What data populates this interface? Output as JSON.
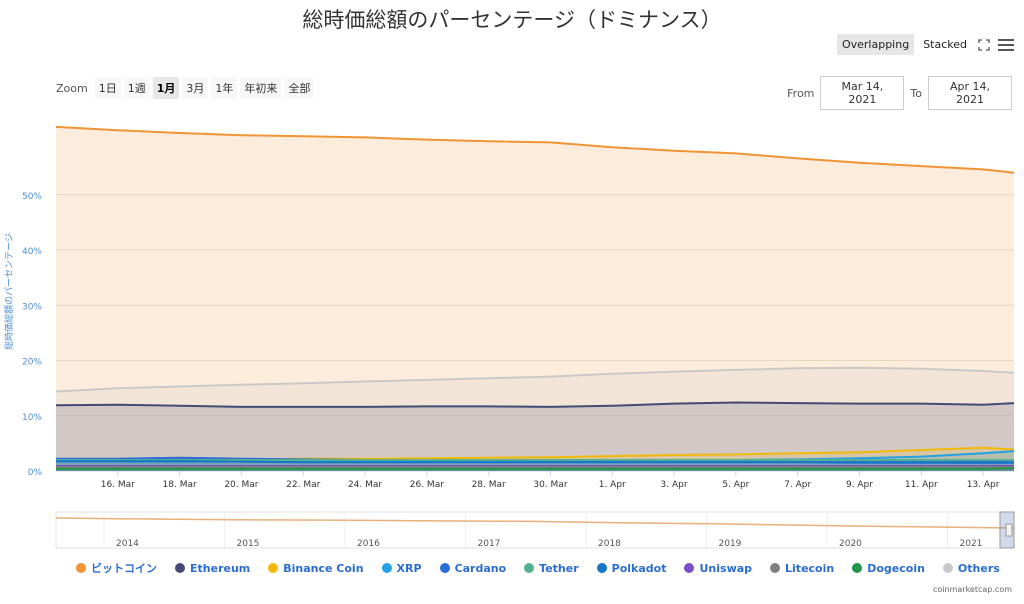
{
  "title": "総時価総額のパーセンテージ（ドミナンス）",
  "toolbar": {
    "overlapping": "Overlapping",
    "stacked": "Stacked",
    "fullscreen_icon": "expand-icon",
    "menu_icon": "hamburger-menu-icon"
  },
  "zoom": {
    "label": "Zoom",
    "buttons": [
      "1日",
      "1週",
      "1月",
      "3月",
      "1年",
      "年初来",
      "全部"
    ],
    "active": "1月"
  },
  "range": {
    "from_label": "From",
    "from_value": "Mar 14, 2021",
    "to_label": "To",
    "to_value": "Apr 14, 2021"
  },
  "credit": "coinmarketcap.com",
  "navigator": {
    "year_labels": [
      "2014",
      "2015",
      "2016",
      "2017",
      "2018",
      "2019",
      "2020",
      "2021"
    ]
  },
  "chart_data": {
    "type": "area",
    "title": "総時価総額のパーセンテージ（ドミナンス）",
    "ylabel": "総時価総額のパーセンテージ",
    "ylim": [
      0,
      65
    ],
    "yticks": [
      "0%",
      "10%",
      "20%",
      "30%",
      "40%",
      "50%"
    ],
    "xlim": [
      "2021-03-14",
      "2021-04-14"
    ],
    "xticks": [
      "16. Mar",
      "18. Mar",
      "20. Mar",
      "22. Mar",
      "24. Mar",
      "26. Mar",
      "28. Mar",
      "30. Mar",
      "1. Apr",
      "3. Apr",
      "5. Apr",
      "7. Apr",
      "9. Apr",
      "11. Apr",
      "13. Apr"
    ],
    "x": [
      "2021-03-14",
      "2021-03-16",
      "2021-03-18",
      "2021-03-20",
      "2021-03-22",
      "2021-03-24",
      "2021-03-26",
      "2021-03-28",
      "2021-03-30",
      "2021-04-01",
      "2021-04-03",
      "2021-04-05",
      "2021-04-07",
      "2021-04-09",
      "2021-04-11",
      "2021-04-13",
      "2021-04-14"
    ],
    "grid": true,
    "legend_position": "bottom",
    "series": [
      {
        "name": "ビットコイン",
        "color": "#f09435",
        "values": [
          62.3,
          61.7,
          61.2,
          60.8,
          60.6,
          60.4,
          60.0,
          59.7,
          59.5,
          58.6,
          58.0,
          57.5,
          56.6,
          55.8,
          55.2,
          54.6,
          54.0
        ]
      },
      {
        "name": "Ethereum",
        "color": "#454a75",
        "values": [
          11.9,
          12.0,
          11.8,
          11.6,
          11.6,
          11.6,
          11.7,
          11.7,
          11.6,
          11.8,
          12.2,
          12.4,
          12.3,
          12.2,
          12.2,
          12.0,
          12.3
        ]
      },
      {
        "name": "Binance Coin",
        "color": "#f0b90b",
        "values": [
          2.1,
          2.1,
          2.1,
          2.1,
          2.2,
          2.2,
          2.3,
          2.4,
          2.5,
          2.7,
          2.9,
          3.0,
          3.2,
          3.4,
          3.8,
          4.2,
          3.9
        ]
      },
      {
        "name": "XRP",
        "color": "#23a1e0",
        "values": [
          1.7,
          1.7,
          1.7,
          1.7,
          1.7,
          1.7,
          1.8,
          1.8,
          1.8,
          1.8,
          1.9,
          2.0,
          2.1,
          2.3,
          2.6,
          3.2,
          3.6
        ]
      },
      {
        "name": "Cardano",
        "color": "#2a6bd6",
        "values": [
          2.2,
          2.2,
          2.4,
          2.2,
          2.1,
          2.0,
          2.0,
          2.0,
          1.9,
          1.9,
          1.9,
          1.8,
          1.8,
          1.8,
          1.8,
          1.8,
          1.8
        ]
      },
      {
        "name": "Tether",
        "color": "#53ae94",
        "values": [
          2.0,
          2.0,
          2.0,
          2.0,
          2.0,
          2.0,
          2.0,
          2.0,
          2.0,
          2.0,
          2.0,
          2.0,
          2.0,
          2.0,
          2.0,
          2.0,
          2.0
        ]
      },
      {
        "name": "Polkadot",
        "color": "#1678c8",
        "values": [
          1.8,
          1.8,
          1.8,
          1.7,
          1.6,
          1.6,
          1.6,
          1.6,
          1.6,
          1.6,
          1.6,
          1.6,
          1.6,
          1.5,
          1.5,
          1.5,
          1.5
        ]
      },
      {
        "name": "Uniswap",
        "color": "#7c4dca",
        "values": [
          0.9,
          0.9,
          0.9,
          0.9,
          0.9,
          0.9,
          0.9,
          0.9,
          0.9,
          0.9,
          0.9,
          0.9,
          0.9,
          0.9,
          0.9,
          0.9,
          0.9
        ]
      },
      {
        "name": "Litecoin",
        "color": "#7f7f7f",
        "values": [
          0.7,
          0.7,
          0.7,
          0.7,
          0.7,
          0.7,
          0.7,
          0.7,
          0.7,
          0.7,
          0.7,
          0.7,
          0.7,
          0.7,
          0.7,
          0.7,
          0.7
        ]
      },
      {
        "name": "Dogecoin",
        "color": "#1f9747",
        "values": [
          0.4,
          0.4,
          0.4,
          0.4,
          0.4,
          0.4,
          0.4,
          0.4,
          0.4,
          0.4,
          0.4,
          0.4,
          0.4,
          0.4,
          0.4,
          0.4,
          0.5
        ]
      },
      {
        "name": "Others",
        "color": "#c9c9c9",
        "values": [
          14.4,
          15.0,
          15.3,
          15.6,
          15.9,
          16.2,
          16.5,
          16.8,
          17.1,
          17.6,
          18.0,
          18.3,
          18.6,
          18.7,
          18.5,
          18.1,
          17.8
        ]
      }
    ]
  }
}
